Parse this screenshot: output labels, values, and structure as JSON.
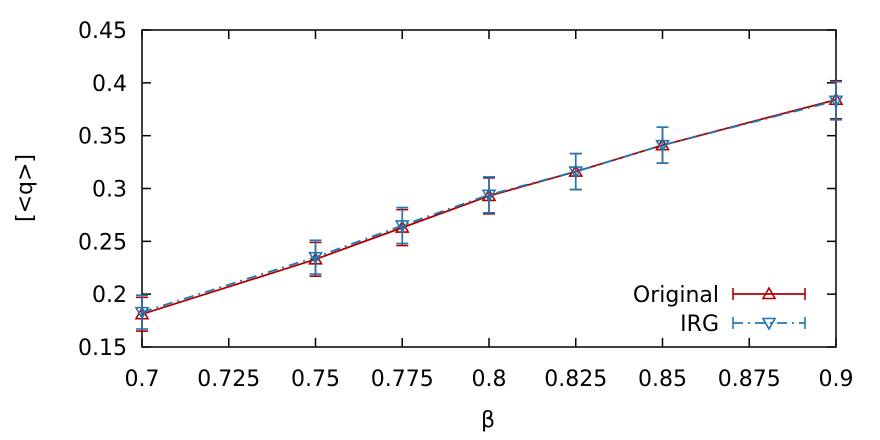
{
  "chart_data": {
    "type": "line",
    "title": "",
    "xlabel": "β",
    "ylabel": "[<q>]",
    "xlim": [
      0.7,
      0.9
    ],
    "ylim": [
      0.15,
      0.45
    ],
    "x_ticks": [
      "0.7",
      "0.725",
      "0.75",
      "0.775",
      "0.8",
      "0.825",
      "0.85",
      "0.875",
      "0.9"
    ],
    "y_ticks": [
      "0.15",
      "0.2",
      "0.25",
      "0.3",
      "0.35",
      "0.4",
      "0.45"
    ],
    "grid": false,
    "legend_position": "bottom-right",
    "series": [
      {
        "name": "Original",
        "color": "#b00000",
        "line_style": "solid",
        "marker": "triangle-up",
        "x": [
          0.7,
          0.75,
          0.775,
          0.8,
          0.825,
          0.85,
          0.9
        ],
        "y": [
          0.181,
          0.233,
          0.263,
          0.293,
          0.316,
          0.341,
          0.384
        ],
        "err": [
          0.016,
          0.016,
          0.017,
          0.017,
          0.017,
          0.017,
          0.018
        ]
      },
      {
        "name": "IRG",
        "color": "#1f78b4",
        "line_style": "dash-dot",
        "marker": "triangle-down",
        "x": [
          0.7,
          0.75,
          0.775,
          0.8,
          0.825,
          0.85,
          0.9
        ],
        "y": [
          0.183,
          0.235,
          0.265,
          0.294,
          0.316,
          0.341,
          0.383
        ],
        "err": [
          0.016,
          0.016,
          0.017,
          0.017,
          0.017,
          0.017,
          0.018
        ]
      }
    ]
  }
}
